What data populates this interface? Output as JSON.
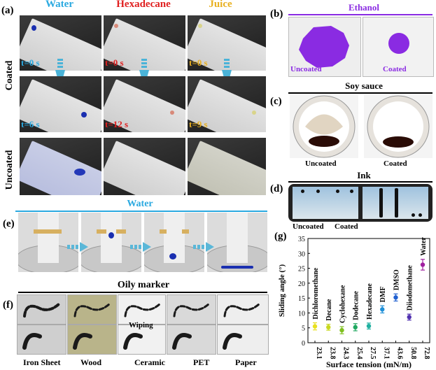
{
  "panel_a": {
    "label": "(a)",
    "columns": [
      {
        "name": "Water",
        "color": "#2aa9e0",
        "t_start": "t=0 s",
        "t_end": "t=6 s",
        "drop": "#1a2fb0"
      },
      {
        "name": "Hexadecane",
        "color": "#e02020",
        "t_start": "t=0 s",
        "t_end": "t=12 s",
        "drop": "#d88a7a"
      },
      {
        "name": "Juice",
        "color": "#e8b020",
        "t_start": "t=0 s",
        "t_end": "t=9 s",
        "drop": "#d9d48a"
      }
    ],
    "row_coated": "Coated",
    "row_uncoated": "Uncoated"
  },
  "panel_b": {
    "label": "(b)",
    "title": "Ethanol",
    "left": "Uncoated",
    "right": "Coated",
    "color": "#8a2be2"
  },
  "panel_c": {
    "label": "(c)",
    "title": "Soy sauce",
    "left": "Uncoated",
    "right": "Coated"
  },
  "panel_d": {
    "label": "(d)",
    "title": "Ink",
    "left": "Uncoated",
    "right": "Coated"
  },
  "panel_e": {
    "label": "(e)",
    "title": "Water"
  },
  "panel_f": {
    "label": "(f)",
    "title": "Oily  marker",
    "wiping": "Wiping",
    "materials": [
      "Iron Sheet",
      "Wood",
      "Ceramic",
      "PET",
      "Paper"
    ]
  },
  "chart_data": {
    "type": "scatter",
    "label": "(g)",
    "title": "",
    "xlabel": "Surface tension (mN/m)",
    "ylabel": "Sliding angle (°)",
    "ylim": [
      0,
      35
    ],
    "yticks": [
      "0",
      "5",
      "10",
      "15",
      "20",
      "25",
      "30",
      "35"
    ],
    "categories": [
      "23.1",
      "23.8",
      "24.3",
      "25.4",
      "27.5",
      "37.1",
      "43.6",
      "50.8",
      "72.8"
    ],
    "liquids": [
      "Dichloromethane",
      "Decane",
      "Cyclohexane",
      "Dodecane",
      "Hexadecane",
      "DMF",
      "DMSO",
      "Diiodomethane",
      "Water"
    ],
    "values": [
      5.5,
      5.2,
      4.2,
      5.2,
      5.6,
      11.2,
      15.2,
      8.6,
      26.2
    ],
    "errors": [
      1.2,
      1.0,
      1.2,
      1.2,
      1.0,
      1.2,
      1.2,
      1.0,
      1.8
    ],
    "colors": [
      "#e8e020",
      "#c8d820",
      "#80c020",
      "#20a860",
      "#20b0a0",
      "#2090d8",
      "#2060d0",
      "#5030b0",
      "#a020a0"
    ]
  }
}
